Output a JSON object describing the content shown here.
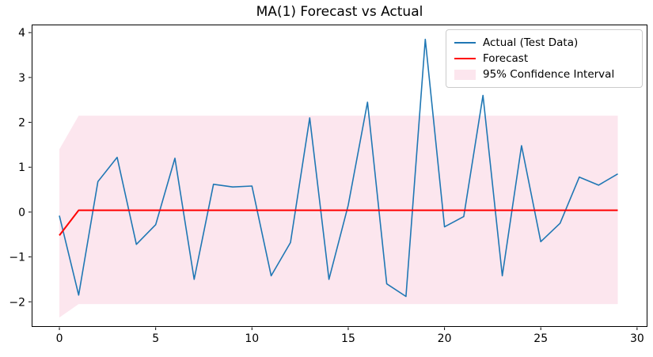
{
  "title": "MA(1) Forecast vs Actual",
  "colors": {
    "actual": "#1f77b4",
    "forecast": "#ff0000",
    "ci_fill": "#fce6ee",
    "axis": "#000000",
    "legend_border": "#cccccc"
  },
  "legend": {
    "position": "upper right",
    "items": [
      {
        "label": "Actual (Test Data)",
        "type": "line",
        "color": "#1f77b4"
      },
      {
        "label": "Forecast",
        "type": "line",
        "color": "#ff0000"
      },
      {
        "label": "95% Confidence Interval",
        "type": "patch",
        "color": "#fce6ee"
      }
    ]
  },
  "chart_data": {
    "type": "line",
    "title": "MA(1) Forecast vs Actual",
    "xlabel": "",
    "ylabel": "",
    "x": [
      0,
      1,
      2,
      3,
      4,
      5,
      6,
      7,
      8,
      9,
      10,
      11,
      12,
      13,
      14,
      15,
      16,
      17,
      18,
      19,
      20,
      21,
      22,
      23,
      24,
      25,
      26,
      27,
      28,
      29
    ],
    "series": [
      {
        "name": "Actual (Test Data)",
        "color": "#1f77b4",
        "values": [
          -0.08,
          -1.85,
          0.68,
          1.22,
          -0.72,
          -0.28,
          1.2,
          -1.5,
          0.62,
          0.56,
          0.58,
          -1.42,
          -0.68,
          2.1,
          -1.5,
          0.15,
          2.45,
          -1.6,
          -1.88,
          3.85,
          -0.33,
          -0.1,
          2.6,
          -1.42,
          1.48,
          -0.66,
          -0.25,
          0.78,
          0.6,
          0.85
        ]
      },
      {
        "name": "Forecast",
        "color": "#ff0000",
        "values": [
          -0.52,
          0.04,
          0.04,
          0.04,
          0.04,
          0.04,
          0.04,
          0.04,
          0.04,
          0.04,
          0.04,
          0.04,
          0.04,
          0.04,
          0.04,
          0.04,
          0.04,
          0.04,
          0.04,
          0.04,
          0.04,
          0.04,
          0.04,
          0.04,
          0.04,
          0.04,
          0.04,
          0.04,
          0.04,
          0.04
        ]
      }
    ],
    "band": {
      "name": "95% Confidence Interval",
      "fill": "#fce6ee",
      "x": [
        0,
        1,
        29
      ],
      "upper": [
        1.4,
        2.15,
        2.15
      ],
      "lower": [
        -2.35,
        -2.05,
        -2.05
      ]
    },
    "xlim": [
      -1.44,
      30.54
    ],
    "ylim": [
      -2.56,
      4.18
    ],
    "xticks": [
      0,
      5,
      10,
      15,
      20,
      25,
      30
    ],
    "yticks": [
      -2,
      -1,
      0,
      1,
      2,
      3,
      4
    ],
    "grid": false,
    "legend_position": "upper right"
  }
}
